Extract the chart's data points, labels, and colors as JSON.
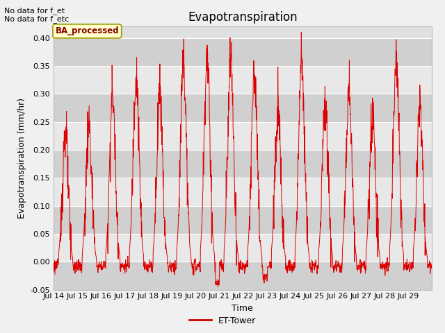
{
  "title": "Evapotranspiration",
  "ylabel": "Evapotranspiration (mm/hr)",
  "xlabel": "Time",
  "ylim": [
    -0.05,
    0.42
  ],
  "xlim": [
    0,
    16
  ],
  "annotation_text": "No data for f_et\nNo data for f_etc",
  "legend_label": "ET-Tower",
  "legend_line_color": "#cc0000",
  "ba_label": "BA_processed",
  "ba_box_color": "#ffffcc",
  "ba_box_edge": "#999900",
  "title_fontsize": 12,
  "ylabel_fontsize": 9,
  "xlabel_fontsize": 9,
  "tick_fontsize": 8,
  "line_color": "#dd0000",
  "grid_color": "#ffffff",
  "bg_light": "#e8e8e8",
  "bg_dark": "#d8d8d8",
  "xtick_labels": [
    "Jul 14",
    "Jul 15",
    "Jul 16",
    "Jul 17",
    "Jul 18",
    "Jul 19",
    "Jul 20",
    "Jul 21",
    "Jul 22",
    "Jul 23",
    "Jul 24",
    "Jul 25",
    "Jul 26",
    "Jul 27",
    "Jul 28",
    "Jul 29"
  ],
  "xtick_positions": [
    0,
    1,
    2,
    3,
    4,
    5,
    6,
    7,
    8,
    9,
    10,
    11,
    12,
    13,
    14,
    15
  ],
  "ytick_positions": [
    -0.05,
    0.0,
    0.05,
    0.1,
    0.15,
    0.2,
    0.25,
    0.3,
    0.35,
    0.4
  ]
}
